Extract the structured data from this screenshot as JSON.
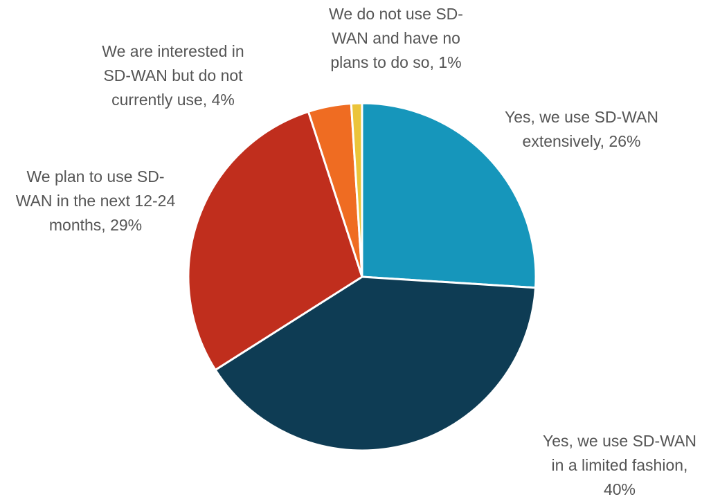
{
  "chart_data": {
    "type": "pie",
    "title": "",
    "start_angle_deg": 0,
    "direction": "clockwise",
    "slices": [
      {
        "name": "Yes, we use SD-WAN extensively",
        "value": 26,
        "color": "#1696BB",
        "label_lines": [
          "Yes, we use SD-WAN",
          "extensively, 26%"
        ]
      },
      {
        "name": "Yes, we use SD-WAN in a limited fashion",
        "value": 40,
        "color": "#0E3C54",
        "label_lines": [
          "Yes, we use SD-WAN",
          "in a limited fashion,",
          "40%"
        ]
      },
      {
        "name": "We plan to use SD-WAN in the next 12-24 months",
        "value": 29,
        "color": "#C02E1D",
        "label_lines": [
          "We plan to use SD-",
          "WAN in the next 12-24",
          "months, 29%"
        ]
      },
      {
        "name": "We are interested in SD-WAN but do not currently use",
        "value": 4,
        "color": "#EF6C22",
        "label_lines": [
          "We are interested in",
          "SD-WAN but do not",
          "currently use, 4%"
        ]
      },
      {
        "name": "We do not use SD-WAN and have no plans to do so",
        "value": 1,
        "color": "#EBC43A",
        "label_lines": [
          "We do not use SD-",
          "WAN and have no",
          "plans to do so, 1%"
        ]
      }
    ]
  }
}
